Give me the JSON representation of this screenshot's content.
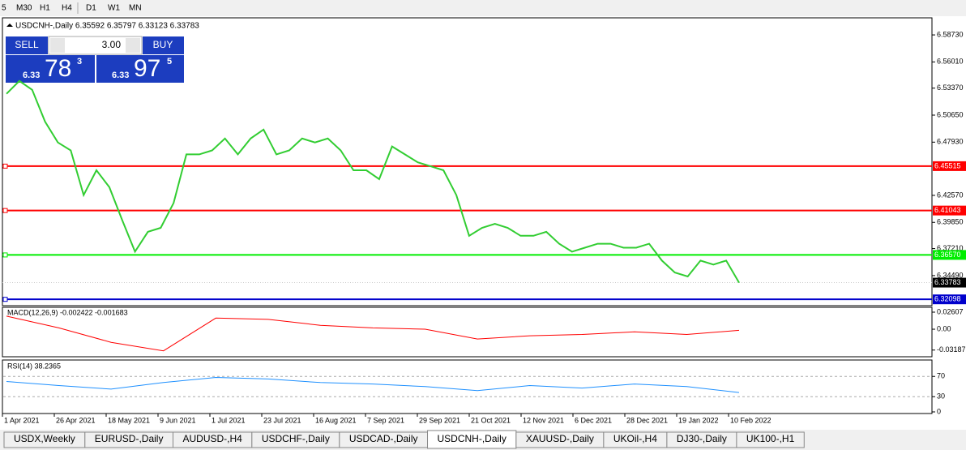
{
  "toolbar": {
    "timeframes": [
      "5",
      "M30",
      "H1",
      "H4",
      "D1",
      "W1",
      "MN"
    ]
  },
  "trade_panel": {
    "sell": "SELL",
    "lot": "3.00",
    "buy": "BUY",
    "bid": {
      "big": "6.33",
      "main": "78",
      "sup": "3"
    },
    "ask": {
      "big": "6.33",
      "main": "97",
      "sup": "5"
    }
  },
  "chart_data": [
    {
      "type": "line",
      "title": "USDCNH-,Daily  6.35592 6.35797 6.33123 6.33783",
      "color": "#32cd32",
      "values": [
        6.528,
        6.541,
        6.532,
        6.5,
        6.479,
        6.471,
        6.426,
        6.451,
        6.434,
        6.401,
        6.369,
        6.389,
        6.393,
        6.418,
        6.467,
        6.467,
        6.471,
        6.483,
        6.467,
        6.483,
        6.492,
        6.467,
        6.471,
        6.483,
        6.479,
        6.483,
        6.471,
        6.451,
        6.451,
        6.442,
        6.475,
        6.467,
        6.459,
        6.455,
        6.451,
        6.426,
        6.385,
        6.393,
        6.397,
        6.393,
        6.385,
        6.385,
        6.389,
        6.377,
        6.369,
        6.373,
        6.377,
        6.377,
        6.373,
        6.373,
        6.377,
        6.36,
        6.348,
        6.344,
        6.36,
        6.356,
        6.36,
        6.33783
      ],
      "ylim": [
        6.3146,
        6.6045
      ],
      "yticks": [
        {
          "value": 6.5873,
          "label": "6.58730"
        },
        {
          "value": 6.5601,
          "label": "6.56010"
        },
        {
          "value": 6.5337,
          "label": "6.53370"
        },
        {
          "value": 6.5065,
          "label": "6.50650"
        },
        {
          "value": 6.4793,
          "label": "6.47930"
        },
        {
          "value": 6.4257,
          "label": "6.42570"
        },
        {
          "value": 6.3985,
          "label": "6.39850"
        },
        {
          "value": 6.3721,
          "label": "6.37210"
        },
        {
          "value": 6.3449,
          "label": "6.34490"
        }
      ],
      "levels": [
        {
          "value": 6.45515,
          "color": "#ff0000"
        },
        {
          "value": 6.41043,
          "color": "#ff0000"
        },
        {
          "value": {
            "value": 6.3657,
            "label": "6.36570"
          },
          "color": "#00ee00"
        },
        {
          "value": 6.32098,
          "color": "#0000cc"
        }
      ],
      "last_price": 6.33783,
      "x_labels": [
        "1 Apr 2021",
        "26 Apr 2021",
        "18 May 2021",
        "9 Jun 2021",
        "1 Jul 2021",
        "23 Jul 2021",
        "16 Aug 2021",
        "7 Sep 2021",
        "29 Sep 2021",
        "21 Oct 2021",
        "12 Nov 2021",
        "6 Dec 2021",
        "28 Dec 2021",
        "19 Jan 2022",
        "10 Feb 2022"
      ]
    },
    {
      "type": "line",
      "title": "MACD(12,26,9) -0.002422 -0.001683",
      "color": "#ff0000",
      "values": [
        0.02,
        0.002,
        -0.02,
        -0.033,
        0.017,
        0.015,
        0.006,
        0.002,
        0.0,
        -0.015,
        -0.01,
        -0.008,
        -0.004,
        -0.008,
        -0.0017
      ],
      "ylim": [
        -0.0421,
        0.0335
      ],
      "yticks": [
        0.02607,
        {
          "value": 0,
          "label": "0.00"
        },
        -0.03187
      ]
    },
    {
      "type": "line",
      "title": "RSI(14) 38.2365",
      "color": "#1e90ff",
      "values": [
        60,
        52,
        45,
        58,
        68,
        65,
        58,
        55,
        50,
        42,
        52,
        47,
        55,
        50,
        38.2365
      ],
      "ylim": [
        -3.2,
        102.4
      ],
      "yticks": [
        70,
        30,
        0
      ]
    }
  ],
  "tabs": [
    "USDX,Weekly",
    "EURUSD-,Daily",
    "AUDUSD-,H4",
    "USDCHF-,Daily",
    "USDCAD-,Daily",
    "USDCNH-,Daily",
    "XAUUSD-,Daily",
    "UKOil-,H4",
    "DJ30-,Daily",
    "UK100-,H1"
  ],
  "active_tab": 5
}
